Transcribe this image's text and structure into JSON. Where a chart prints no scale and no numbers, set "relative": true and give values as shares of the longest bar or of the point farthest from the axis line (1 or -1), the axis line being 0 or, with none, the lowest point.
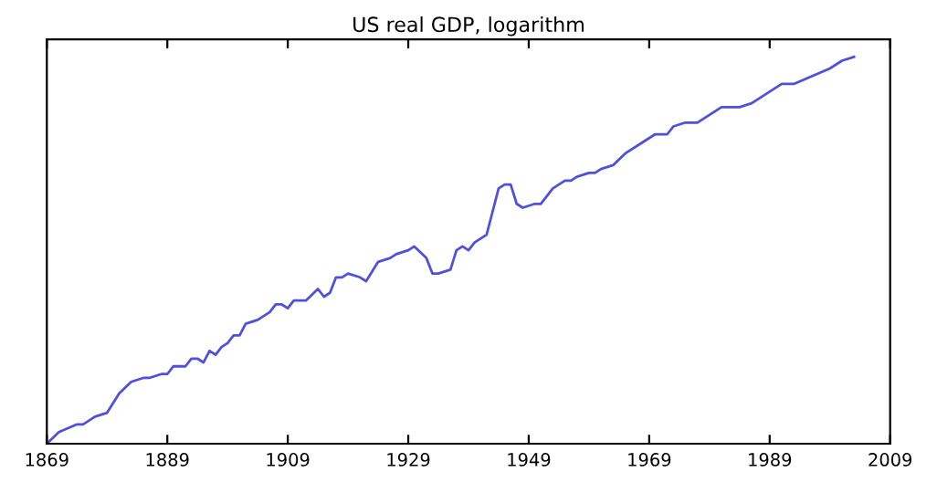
{
  "chart_data": {
    "type": "line",
    "title": "US real GDP, logarithm",
    "relative": true,
    "x": [
      1869,
      1871,
      1874,
      1875,
      1876,
      1877,
      1879,
      1881,
      1883,
      1885,
      1886,
      1888,
      1889,
      1890,
      1892,
      1893,
      1894,
      1895,
      1896,
      1897,
      1898,
      1899,
      1900,
      1901,
      1902,
      1904,
      1906,
      1907,
      1908,
      1909,
      1910,
      1912,
      1914,
      1915,
      1916,
      1917,
      1918,
      1919,
      1921,
      1922,
      1924,
      1926,
      1927,
      1929,
      1930,
      1932,
      1933,
      1934,
      1936,
      1937,
      1938,
      1939,
      1940,
      1942,
      1943,
      1944,
      1945,
      1946,
      1947,
      1948,
      1950,
      1951,
      1953,
      1955,
      1956,
      1957,
      1959,
      1960,
      1961,
      1963,
      1965,
      1968,
      1970,
      1972,
      1973,
      1975,
      1977,
      1979,
      1981,
      1982,
      1983,
      1984,
      1986,
      1988,
      1991,
      1993,
      1996,
      1999,
      2001,
      2003
    ],
    "series": [
      {
        "color": "#5050e0",
        "values": [
          0,
          0.03,
          0.05,
          0.05,
          0.06,
          0.07,
          0.08,
          0.13,
          0.16,
          0.17,
          0.17,
          0.18,
          0.18,
          0.2,
          0.2,
          0.22,
          0.22,
          0.21,
          0.24,
          0.23,
          0.25,
          0.26,
          0.28,
          0.28,
          0.31,
          0.32,
          0.34,
          0.36,
          0.36,
          0.35,
          0.37,
          0.37,
          0.4,
          0.38,
          0.39,
          0.43,
          0.43,
          0.44,
          0.43,
          0.42,
          0.47,
          0.48,
          0.49,
          0.5,
          0.51,
          0.48,
          0.44,
          0.44,
          0.45,
          0.5,
          0.51,
          0.5,
          0.52,
          0.54,
          0.6,
          0.66,
          0.67,
          0.67,
          0.62,
          0.61,
          0.62,
          0.62,
          0.66,
          0.68,
          0.68,
          0.69,
          0.7,
          0.7,
          0.71,
          0.72,
          0.75,
          0.78,
          0.8,
          0.8,
          0.82,
          0.83,
          0.83,
          0.85,
          0.87,
          0.87,
          0.87,
          0.87,
          0.88,
          0.9,
          0.93,
          0.93,
          0.95,
          0.97,
          0.99,
          1
        ]
      }
    ],
    "xlim": [
      1869,
      2009
    ],
    "xticks": [
      1869,
      1889,
      1909,
      1929,
      1949,
      1969,
      1989,
      2009
    ],
    "grid": false,
    "legend": false,
    "marker": "none",
    "line_style": "solid"
  }
}
